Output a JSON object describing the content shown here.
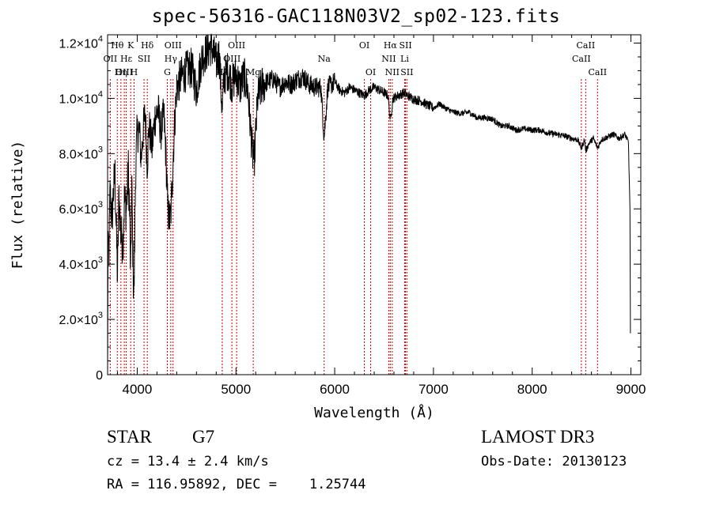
{
  "title": "spec-56316-GAC118N03V2_sp02-123.fits",
  "info": {
    "class_label": "STAR",
    "subclass": "G7",
    "survey": "LAMOST DR3",
    "cz": "cz = 13.4 ± 2.4 km/s",
    "obs_date": "Obs-Date: 20130123",
    "coords": "RA = 116.95892, DEC =    1.25744"
  },
  "chart_data": {
    "type": "line",
    "title": "spec-56316-GAC118N03V2_sp02-123.fits",
    "xlabel": "Wavelength (Å)",
    "ylabel": "Flux (relative)",
    "xlim": [
      3700,
      9100
    ],
    "ylim": [
      0,
      12300
    ],
    "x_ticks": [
      4000,
      5000,
      6000,
      7000,
      8000,
      9000
    ],
    "x_tick_labels": [
      "4000",
      "5000",
      "6000",
      "7000",
      "8000",
      "9000"
    ],
    "y_ticks": [
      0,
      2000,
      4000,
      6000,
      8000,
      10000,
      12000
    ],
    "y_tick_labels": [
      {
        "mantissa": "0",
        "exp": ""
      },
      {
        "mantissa": "2.0×10",
        "exp": "3"
      },
      {
        "mantissa": "4.0×10",
        "exp": "3"
      },
      {
        "mantissa": "6.0×10",
        "exp": "3"
      },
      {
        "mantissa": "8.0×10",
        "exp": "3"
      },
      {
        "mantissa": "1.0×10",
        "exp": "4"
      },
      {
        "mantissa": "1.2×10",
        "exp": "4"
      }
    ],
    "series": [
      {
        "name": "flux",
        "anchors": [
          [
            3700,
            0
          ],
          [
            3705,
            5200
          ],
          [
            3715,
            4500
          ],
          [
            3725,
            6600
          ],
          [
            3745,
            5600
          ],
          [
            3760,
            6700
          ],
          [
            3775,
            7200
          ],
          [
            3790,
            5000
          ],
          [
            3800,
            3500
          ],
          [
            3815,
            6500
          ],
          [
            3835,
            5000
          ],
          [
            3855,
            4800
          ],
          [
            3870,
            6300
          ],
          [
            3890,
            6000
          ],
          [
            3910,
            7400
          ],
          [
            3925,
            5600
          ],
          [
            3933,
            3400
          ],
          [
            3945,
            6900
          ],
          [
            3960,
            3500
          ],
          [
            3968,
            3000
          ],
          [
            3985,
            7600
          ],
          [
            4000,
            8700
          ],
          [
            4020,
            8900
          ],
          [
            4040,
            7800
          ],
          [
            4060,
            8800
          ],
          [
            4080,
            9500
          ],
          [
            4101,
            7600
          ],
          [
            4120,
            9000
          ],
          [
            4150,
            8200
          ],
          [
            4180,
            9300
          ],
          [
            4210,
            9600
          ],
          [
            4240,
            8800
          ],
          [
            4270,
            9400
          ],
          [
            4290,
            8000
          ],
          [
            4310,
            6000
          ],
          [
            4326,
            5600
          ],
          [
            4340,
            5700
          ],
          [
            4360,
            7500
          ],
          [
            4380,
            9200
          ],
          [
            4400,
            10400
          ],
          [
            4450,
            10800
          ],
          [
            4500,
            11000
          ],
          [
            4550,
            11100
          ],
          [
            4600,
            10300
          ],
          [
            4650,
            11400
          ],
          [
            4700,
            11700
          ],
          [
            4750,
            11900
          ],
          [
            4800,
            11300
          ],
          [
            4830,
            11600
          ],
          [
            4861,
            9500
          ],
          [
            4880,
            10800
          ],
          [
            4920,
            11000
          ],
          [
            4960,
            10500
          ],
          [
            5000,
            10900
          ],
          [
            5040,
            10400
          ],
          [
            5080,
            10800
          ],
          [
            5120,
            10300
          ],
          [
            5167,
            8000
          ],
          [
            5184,
            7700
          ],
          [
            5220,
            10000
          ],
          [
            5270,
            10500
          ],
          [
            5320,
            10600
          ],
          [
            5380,
            10700
          ],
          [
            5440,
            10400
          ],
          [
            5500,
            10600
          ],
          [
            5560,
            10500
          ],
          [
            5620,
            10700
          ],
          [
            5680,
            10800
          ],
          [
            5740,
            10500
          ],
          [
            5800,
            10400
          ],
          [
            5860,
            10400
          ],
          [
            5893,
            8600
          ],
          [
            5930,
            10400
          ],
          [
            6000,
            10600
          ],
          [
            6050,
            10300
          ],
          [
            6100,
            10200
          ],
          [
            6150,
            10400
          ],
          [
            6200,
            10300
          ],
          [
            6250,
            10200
          ],
          [
            6300,
            10100
          ],
          [
            6350,
            10300
          ],
          [
            6400,
            10400
          ],
          [
            6450,
            10300
          ],
          [
            6500,
            10200
          ],
          [
            6540,
            10100
          ],
          [
            6563,
            9200
          ],
          [
            6590,
            10000
          ],
          [
            6640,
            10100
          ],
          [
            6700,
            10200
          ],
          [
            6760,
            10050
          ],
          [
            6820,
            9950
          ],
          [
            6880,
            9900
          ],
          [
            6940,
            9750
          ],
          [
            7000,
            9650
          ],
          [
            7060,
            9800
          ],
          [
            7120,
            9650
          ],
          [
            7200,
            9500
          ],
          [
            7280,
            9450
          ],
          [
            7360,
            9500
          ],
          [
            7440,
            9300
          ],
          [
            7520,
            9300
          ],
          [
            7600,
            9250
          ],
          [
            7680,
            9000
          ],
          [
            7760,
            9000
          ],
          [
            7840,
            8850
          ],
          [
            7920,
            8900
          ],
          [
            8000,
            8850
          ],
          [
            8080,
            8850
          ],
          [
            8160,
            8750
          ],
          [
            8240,
            8700
          ],
          [
            8320,
            8650
          ],
          [
            8400,
            8550
          ],
          [
            8460,
            8500
          ],
          [
            8498,
            8200
          ],
          [
            8530,
            8500
          ],
          [
            8542,
            8100
          ],
          [
            8580,
            8400
          ],
          [
            8620,
            8550
          ],
          [
            8662,
            8200
          ],
          [
            8700,
            8500
          ],
          [
            8760,
            8600
          ],
          [
            8820,
            8700
          ],
          [
            8880,
            8550
          ],
          [
            8940,
            8700
          ],
          [
            8975,
            8400
          ],
          [
            8990,
            6000
          ],
          [
            8995,
            1500
          ]
        ]
      }
    ],
    "line_markers": [
      {
        "label": "Hθ",
        "wavelength": 3798,
        "row": 1
      },
      {
        "label": "OII",
        "wavelength": 3727,
        "row": 2
      },
      {
        "label": "OIII",
        "wavelength": 3869,
        "row": 3
      },
      {
        "label": "Hη",
        "wavelength": 3835,
        "row": 3
      },
      {
        "label": "K",
        "wavelength": 3934,
        "row": 1
      },
      {
        "label": "H",
        "wavelength": 3968,
        "row": 3
      },
      {
        "label": "Hε",
        "wavelength": 3889,
        "row": 2
      },
      {
        "label": "SII",
        "wavelength": 4069,
        "row": 2
      },
      {
        "label": "Hδ",
        "wavelength": 4102,
        "row": 1
      },
      {
        "label": "OIII",
        "wavelength": 4363,
        "row": 1
      },
      {
        "label": "Hγ",
        "wavelength": 4340,
        "row": 2
      },
      {
        "label": "G",
        "wavelength": 4305,
        "row": 3
      },
      {
        "label": "OIII",
        "wavelength": 5007,
        "row": 1
      },
      {
        "label": "OIII",
        "wavelength": 4959,
        "row": 2
      },
      {
        "label": "Hβ",
        "wavelength": 4861,
        "row": 3
      },
      {
        "label": "Mg",
        "wavelength": 5175,
        "row": 3
      },
      {
        "label": "Na",
        "wavelength": 5893,
        "row": 2
      },
      {
        "label": "OI",
        "wavelength": 6300,
        "row": 1
      },
      {
        "label": "OI",
        "wavelength": 6364,
        "row": 3
      },
      {
        "label": "Hα",
        "wavelength": 6563,
        "row": 1
      },
      {
        "label": "SII",
        "wavelength": 6717,
        "row": 1
      },
      {
        "label": "NII",
        "wavelength": 6548,
        "row": 2
      },
      {
        "label": "Li",
        "wavelength": 6708,
        "row": 2
      },
      {
        "label": "NII",
        "wavelength": 6583,
        "row": 3
      },
      {
        "label": "SII",
        "wavelength": 6731,
        "row": 3
      },
      {
        "label": "CaII",
        "wavelength": 8542,
        "row": 1
      },
      {
        "label": "CaII",
        "wavelength": 8498,
        "row": 2
      },
      {
        "label": "CaII",
        "wavelength": 8662,
        "row": 3
      }
    ],
    "colors": {
      "line": "#000000",
      "marker": "#cc0000",
      "axis": "#000000"
    },
    "grid": false
  }
}
